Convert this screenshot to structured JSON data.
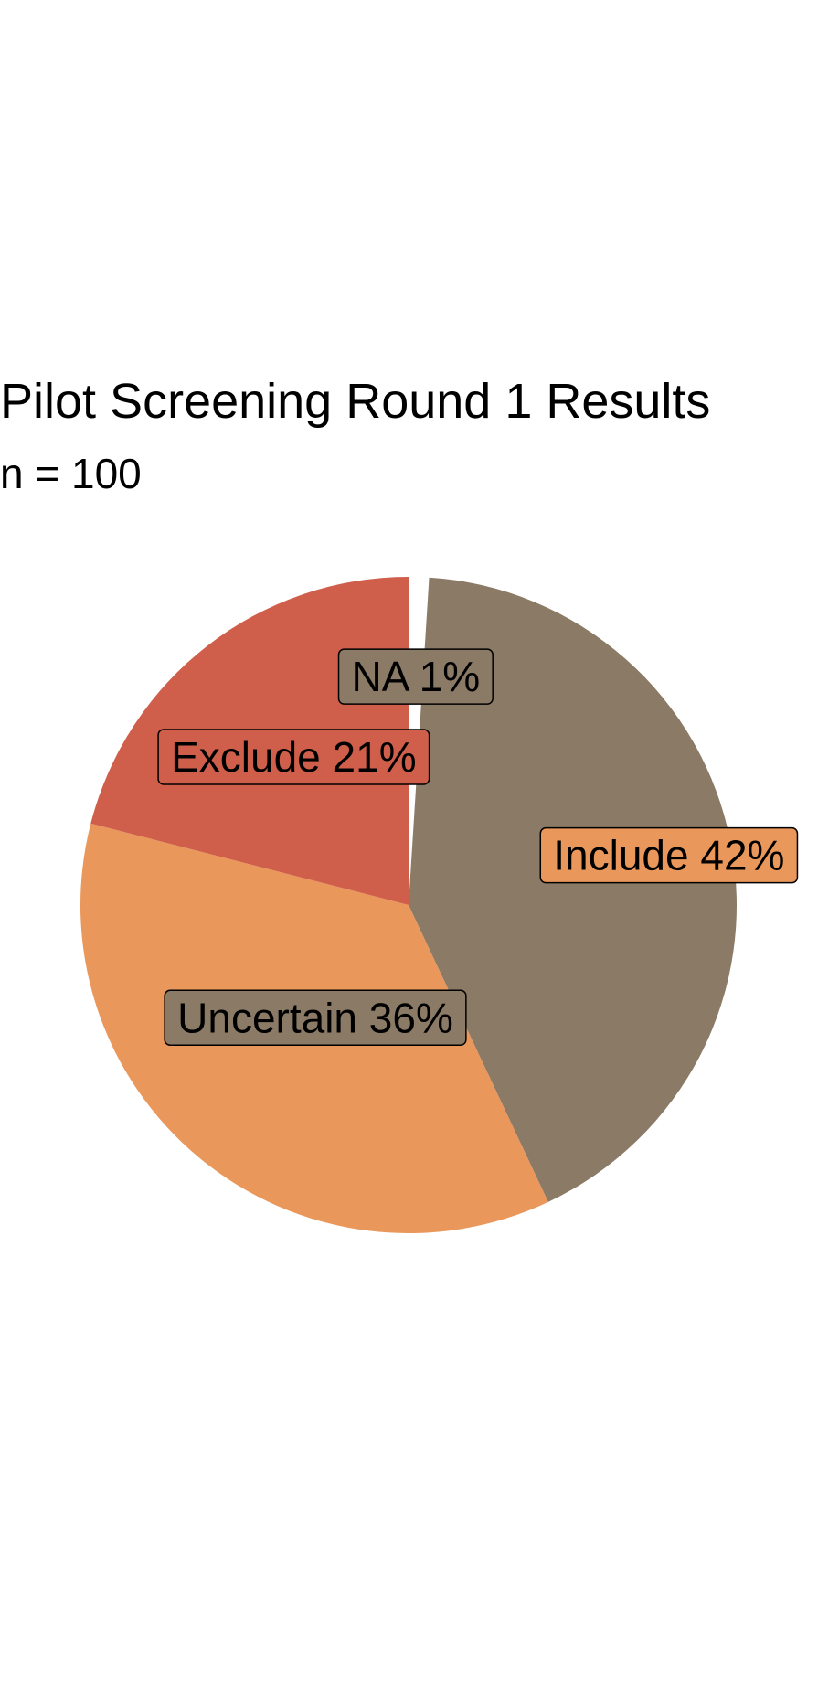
{
  "chart_data": {
    "type": "pie",
    "title": "Pilot Screening Round 1 Results",
    "subtitle": "n = 100",
    "slices": [
      {
        "label": "NA",
        "value": 1,
        "percent_label": "1%",
        "color": "#ffffff",
        "label_fill": "#8a7a66"
      },
      {
        "label": "Include",
        "value": 42,
        "percent_label": "42%",
        "color": "#8a7a66",
        "label_fill": "#e9975b"
      },
      {
        "label": "Uncertain",
        "value": 36,
        "percent_label": "36%",
        "color": "#e9975b",
        "label_fill": "#8a7a66"
      },
      {
        "label": "Exclude",
        "value": 21,
        "percent_label": "21%",
        "color": "#cf5f4b",
        "label_fill": "#cf5f4b"
      }
    ],
    "start": "top",
    "direction": "clockwise",
    "legend": "none",
    "grid": false
  }
}
